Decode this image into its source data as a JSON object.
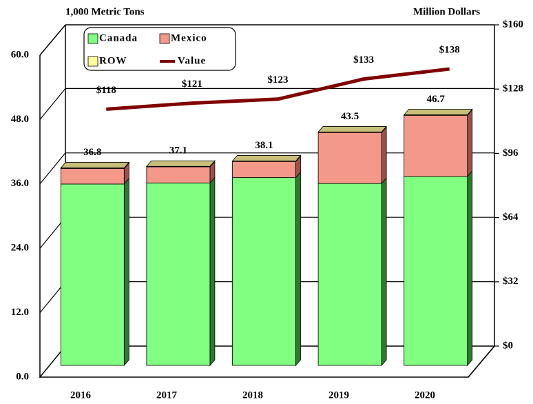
{
  "chart_data": {
    "type": "bar",
    "y_label": "1,000 Metric Tons",
    "y2_label": "Million Dollars",
    "categories": [
      "2016",
      "2017",
      "2018",
      "2019",
      "2020"
    ],
    "series": [
      {
        "name": "Canada",
        "color": "#80ff80",
        "values": [
          33.8,
          34.0,
          35.0,
          33.9,
          35.2
        ]
      },
      {
        "name": "Mexico",
        "color": "#f4998a",
        "values": [
          2.9,
          3.0,
          3.0,
          9.5,
          11.4
        ]
      },
      {
        "name": "ROW",
        "color": "#ffff99",
        "values": [
          0.1,
          0.1,
          0.1,
          0.1,
          0.1
        ]
      },
      {
        "name": "Value",
        "color": "#800000",
        "axis": "y2",
        "type": "line",
        "values": [
          118,
          121,
          123,
          133,
          138
        ],
        "value_labels": [
          "$118",
          "$121",
          "$123",
          "$133",
          "$138"
        ]
      }
    ],
    "total_labels": [
      "36.8",
      "37.1",
      "38.1",
      "43.5",
      "46.7"
    ],
    "stacked": true,
    "ylim": [
      0,
      60
    ],
    "yticks": [
      {
        "value": 0,
        "label": "0.0"
      },
      {
        "value": 12,
        "label": "12.0"
      },
      {
        "value": 24,
        "label": "24.0"
      },
      {
        "value": 36,
        "label": "36.0"
      },
      {
        "value": 48,
        "label": "48.0"
      },
      {
        "value": 60,
        "label": "60.0"
      }
    ],
    "y2lim": [
      0,
      160
    ],
    "y2ticks": [
      {
        "value": 0,
        "label": "$0"
      },
      {
        "value": 32,
        "label": "$32"
      },
      {
        "value": 64,
        "label": "$64"
      },
      {
        "value": 96,
        "label": "$96"
      },
      {
        "value": 128,
        "label": "$128"
      },
      {
        "value": 160,
        "label": "$160"
      }
    ],
    "grid": true,
    "legend": "top-left"
  }
}
